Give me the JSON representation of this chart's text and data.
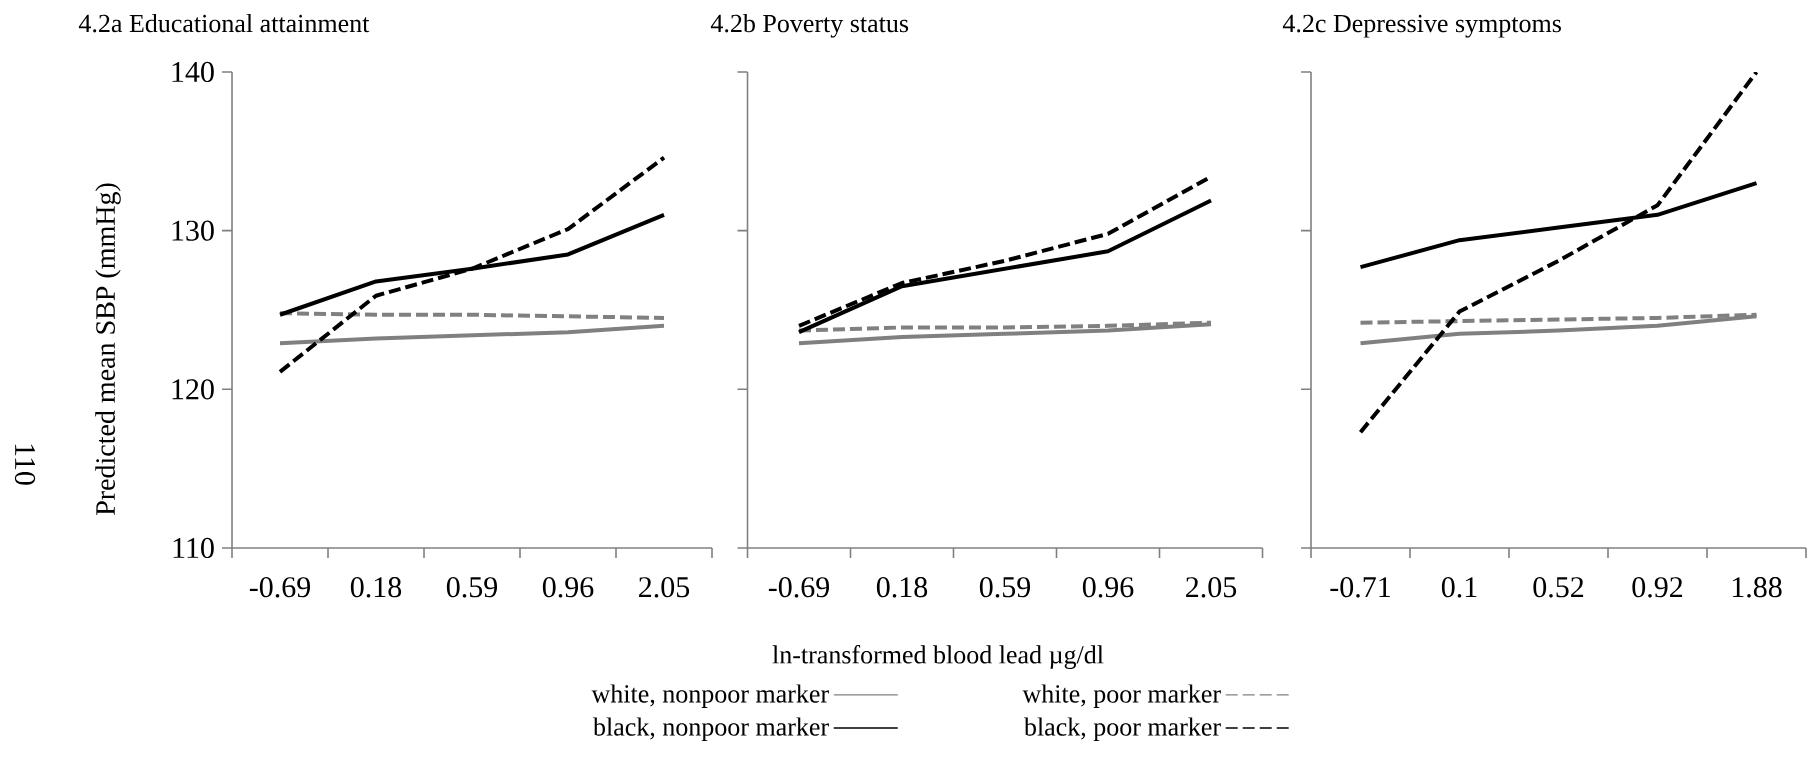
{
  "chart_data": [
    {
      "type": "line",
      "title": "4.2a  Educational attainment",
      "ylabel": "Predicted mean SBP (mmHg)",
      "annotations": [
        "110"
      ],
      "categories": [
        "-0.69",
        "0.18",
        "0.59",
        "0.96",
        "2.05"
      ],
      "ylim": [
        110,
        140
      ],
      "yticks": [
        110,
        120,
        130,
        140
      ],
      "series": [
        {
          "color": "#808080",
          "line_style": "solid",
          "values": [
            122.9,
            123.2,
            123.4,
            123.6,
            124.0
          ]
        },
        {
          "color": "#808080",
          "line_style": "dashed",
          "values": [
            124.8,
            124.7,
            124.7,
            124.6,
            124.5
          ]
        },
        {
          "color": "#000000",
          "line_style": "solid",
          "values": [
            124.7,
            126.8,
            127.6,
            128.5,
            131.0
          ]
        },
        {
          "color": "#000000",
          "line_style": "dashed",
          "values": [
            121.1,
            125.9,
            127.6,
            130.1,
            134.6
          ]
        }
      ]
    },
    {
      "type": "line",
      "title": "4.2b  Poverty status",
      "xlabel": "ln-transformed blood lead µg/dl",
      "legend": "bottom",
      "tick_labels": "x",
      "categories": [
        "-0.69",
        "0.18",
        "0.59",
        "0.96",
        "2.05"
      ],
      "ylim": [
        110,
        140
      ],
      "yticks": [
        110,
        120,
        130,
        140
      ],
      "series": [
        {
          "name": "white, nonpoor marker",
          "color": "#808080",
          "line_style": "solid",
          "values": [
            122.9,
            123.3,
            123.5,
            123.7,
            124.1
          ]
        },
        {
          "name": "white, poor marker",
          "color": "#808080",
          "line_style": "dashed",
          "values": [
            123.7,
            123.9,
            123.9,
            124.0,
            124.2
          ]
        },
        {
          "name": "black, nonpoor marker",
          "color": "#000000",
          "line_style": "solid",
          "values": [
            123.6,
            126.5,
            127.6,
            128.7,
            131.9
          ]
        },
        {
          "name": "black, poor marker",
          "color": "#000000",
          "line_style": "dashed",
          "values": [
            124.0,
            126.7,
            128.1,
            129.8,
            133.4
          ]
        }
      ]
    },
    {
      "type": "line",
      "title": "4.2c  Depressive symptoms",
      "tick_labels": "x",
      "categories": [
        "-0.71",
        "0.1",
        "0.52",
        "0.92",
        "1.88"
      ],
      "ylim": [
        110,
        140
      ],
      "yticks": [
        110,
        120,
        130,
        140
      ],
      "series": [
        {
          "color": "#808080",
          "line_style": "solid",
          "values": [
            122.9,
            123.5,
            123.7,
            124.0,
            124.6
          ]
        },
        {
          "color": "#808080",
          "line_style": "dashed",
          "values": [
            124.2,
            124.3,
            124.4,
            124.5,
            124.7
          ]
        },
        {
          "color": "#000000",
          "line_style": "solid",
          "values": [
            127.7,
            129.4,
            130.2,
            131.0,
            133.0
          ]
        },
        {
          "color": "#000000",
          "line_style": "dashed",
          "values": [
            117.3,
            124.9,
            128.1,
            131.6,
            140.0
          ]
        }
      ]
    }
  ]
}
